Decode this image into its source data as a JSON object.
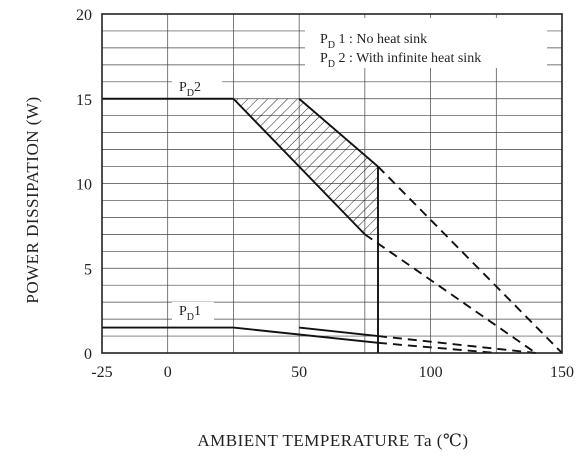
{
  "chart_data": {
    "type": "line",
    "title": "",
    "xlabel": "AMBIENT TEMPERATURE  Ta (℃)",
    "ylabel": "POWER DISSIPATION  (W)",
    "xlim": [
      -25,
      150
    ],
    "ylim": [
      0,
      20
    ],
    "x_ticks": [
      "-25",
      "0",
      "50",
      "100",
      "150"
    ],
    "y_ticks": [
      "0",
      "5",
      "10",
      "15",
      "20"
    ],
    "grid": true,
    "legend": {
      "placement": "top-right",
      "entries": [
        {
          "main": "P",
          "sub": "D",
          "text": " 1 : No heat sink"
        },
        {
          "main": "P",
          "sub": "D",
          "text": " 2 : With infinite heat sink"
        }
      ]
    },
    "series_labels": {
      "pd2": {
        "main": "P",
        "sub": "D",
        "text": "2"
      },
      "pd1": {
        "main": "P",
        "sub": "D",
        "text": "1"
      }
    },
    "lines": [
      {
        "style": "solid",
        "points": [
          [
            -25,
            15
          ],
          [
            25,
            15
          ]
        ]
      },
      {
        "style": "solid",
        "points": [
          [
            25,
            15
          ],
          [
            75,
            7
          ]
        ]
      },
      {
        "style": "solid",
        "points": [
          [
            50,
            15
          ],
          [
            80,
            11
          ]
        ]
      },
      {
        "style": "dashed",
        "points": [
          [
            75,
            7
          ],
          [
            140,
            0
          ]
        ]
      },
      {
        "style": "dashed",
        "points": [
          [
            80,
            11
          ],
          [
            150,
            0
          ]
        ]
      },
      {
        "style": "solid",
        "points": [
          [
            80,
            11
          ],
          [
            80,
            0
          ]
        ]
      },
      {
        "style": "solid",
        "points": [
          [
            -25,
            1.5
          ],
          [
            25,
            1.5
          ]
        ]
      },
      {
        "style": "solid",
        "points": [
          [
            25,
            1.5
          ],
          [
            80,
            0.6
          ]
        ]
      },
      {
        "style": "solid",
        "points": [
          [
            50,
            1.5
          ],
          [
            80,
            1
          ]
        ]
      },
      {
        "style": "dashed",
        "points": [
          [
            80,
            0.6
          ],
          [
            125,
            0
          ]
        ]
      },
      {
        "style": "dashed",
        "points": [
          [
            80,
            1
          ],
          [
            140,
            0
          ]
        ]
      }
    ],
    "shaded_region": [
      [
        25,
        15
      ],
      [
        50,
        15
      ],
      [
        80,
        11
      ],
      [
        80,
        7
      ],
      [
        75,
        7
      ]
    ]
  }
}
